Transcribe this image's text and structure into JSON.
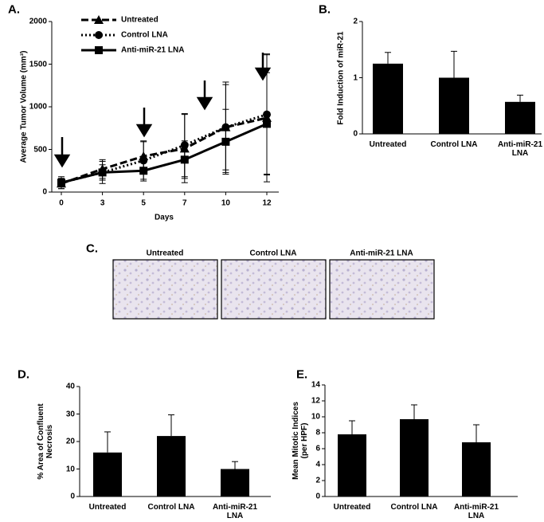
{
  "chart_data": [
    {
      "type": "line",
      "panel_label": "A.",
      "x_label": "Days",
      "y_label": "Average Tumor Volume (mm³)",
      "categories": [
        "0",
        "3",
        "5",
        "7",
        "10",
        "12"
      ],
      "ylim": [
        0,
        2000
      ],
      "yticks": [
        0,
        500,
        1000,
        1500,
        2000
      ],
      "series": [
        {
          "name": "Untreated",
          "color": "#000000",
          "dash": "dashed",
          "marker": "triangle",
          "values": [
            100,
            270,
            420,
            510,
            760,
            870
          ],
          "errors": [
            60,
            110,
            180,
            400,
            500,
            750
          ]
        },
        {
          "name": "Control LNA",
          "color": "#000000",
          "dash": "dotted",
          "marker": "circle",
          "values": [
            110,
            230,
            370,
            550,
            760,
            910
          ],
          "errors": [
            70,
            130,
            220,
            370,
            530,
            700
          ]
        },
        {
          "name": "Anti-miR-21 LNA",
          "color": "#000000",
          "dash": "solid",
          "marker": "square",
          "values": [
            110,
            230,
            250,
            380,
            590,
            800
          ],
          "errors": [
            50,
            90,
            120,
            220,
            380,
            600
          ]
        }
      ]
    },
    {
      "type": "bar",
      "panel_label": "B.",
      "y_label": "Fold Induction of miR-21",
      "color": "#000000",
      "categories": [
        "Untreated",
        "Control LNA",
        "Anti-miR-21\nLNA"
      ],
      "values": [
        1.25,
        1.0,
        0.57
      ],
      "errors": [
        0.2,
        0.47,
        0.12
      ],
      "ylim": [
        0,
        2
      ],
      "yticks": [
        0,
        1,
        2
      ]
    },
    {
      "type": "bar",
      "panel_label": "D.",
      "y_label": "% Area of Confluent\nNecrosis",
      "color": "#000000",
      "categories": [
        "Untreated",
        "Control LNA",
        "Anti-miR-21\nLNA"
      ],
      "values": [
        16,
        22,
        10
      ],
      "errors": [
        7.5,
        7.7,
        2.7
      ],
      "ylim": [
        0,
        40
      ],
      "yticks": [
        0,
        10,
        20,
        30,
        40
      ]
    },
    {
      "type": "bar",
      "panel_label": "E.",
      "y_label": "Mean Mitotic Indices\n(per HPF)",
      "color": "#000000",
      "categories": [
        "Untreated",
        "Control LNA",
        "Anti-miR-21\nLNA"
      ],
      "values": [
        7.8,
        9.7,
        6.8
      ],
      "errors": [
        1.7,
        1.8,
        2.2
      ],
      "ylim": [
        0,
        14
      ],
      "yticks": [
        0,
        2,
        4,
        6,
        8,
        10,
        12,
        14
      ]
    }
  ],
  "images": {
    "panel_label": "C.",
    "titles": [
      "Untreated",
      "Control LNA",
      "Anti-miR-21 LNA"
    ]
  }
}
